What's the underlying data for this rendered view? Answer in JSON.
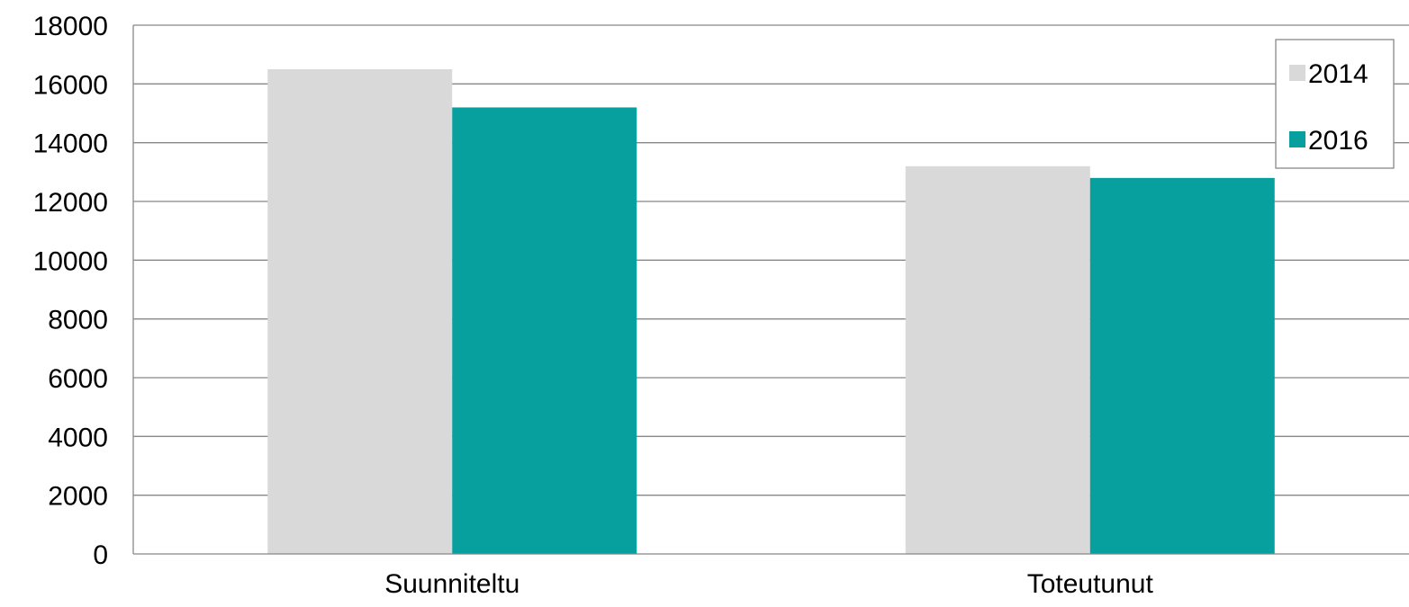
{
  "chart_data": {
    "type": "bar",
    "title": "",
    "xlabel": "",
    "ylabel": "",
    "categories": [
      "Suunniteltu",
      "Toteutunut"
    ],
    "series": [
      {
        "name": "2014",
        "values": [
          16500,
          13200
        ],
        "color": "#d9d9d9"
      },
      {
        "name": "2016",
        "values": [
          15200,
          12800
        ],
        "color": "#089f9f"
      }
    ],
    "ylim": [
      0,
      18000
    ],
    "yticks": [
      "0",
      "2000",
      "4000",
      "6000",
      "8000",
      "10000",
      "12000",
      "14000",
      "16000",
      "18000"
    ],
    "grid": true,
    "legend": "top-right"
  }
}
